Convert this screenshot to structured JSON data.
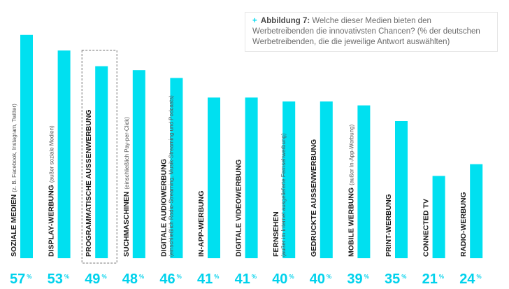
{
  "figure": {
    "plus": "+",
    "heading": "Abbildung 7:",
    "caption": "Welche dieser Medien bieten den Werbetreibenden die innovativsten Chancen? (% der deutschen Werbetreibenden, die die jeweilige Antwort auswählten)"
  },
  "colors": {
    "bar": "#00e0f0",
    "value": "#00d2ec",
    "label": "#1a1a1a",
    "sublabel": "#555555",
    "highlight_border": "#777777"
  },
  "chart_data": {
    "type": "bar",
    "orientation": "vertical",
    "unit": "%",
    "ylim": [
      0,
      60
    ],
    "grid": false,
    "highlighted_category": "PROGRAMMATISCHE AUSSENWERBUNG",
    "categories": [
      {
        "label": "SOZIALE MEDIEN",
        "note": "(z. B. Facebook, Instagram, Twitter)"
      },
      {
        "label": "DISPLAY-WERBUNG",
        "note": "(außer soziale Medien)"
      },
      {
        "label": "PROGRAMMATISCHE AUSSENWERBUNG",
        "note": ""
      },
      {
        "label": "SUCHMASCHINEN",
        "note": "(einschließlich Pay-per-Click)"
      },
      {
        "label": "DIGITALE AUDIOWERBUNG",
        "note": "(einschließlich Radio-Streaming, Musik-Streaming und Podcasts)"
      },
      {
        "label": "IN-APP-WERBUNG",
        "note": ""
      },
      {
        "label": "DIGITALE VIDEOWERBUNG",
        "note": ""
      },
      {
        "label": "FERNSEHEN",
        "note": "(außer im Internet ausgelieferte Fernsehwerbung)"
      },
      {
        "label": "GEDRUCKTE AUSSENWERBUNG",
        "note": ""
      },
      {
        "label": "MOBILE WERBUNG",
        "note": "(außer In-App-Werbung)"
      },
      {
        "label": "PRINT-WERBUNG",
        "note": ""
      },
      {
        "label": "CONNECTED TV",
        "note": ""
      },
      {
        "label": "RADIO-WERBUNG",
        "note": ""
      }
    ],
    "values": [
      57,
      53,
      49,
      48,
      46,
      41,
      41,
      40,
      40,
      39,
      35,
      21,
      24
    ]
  }
}
